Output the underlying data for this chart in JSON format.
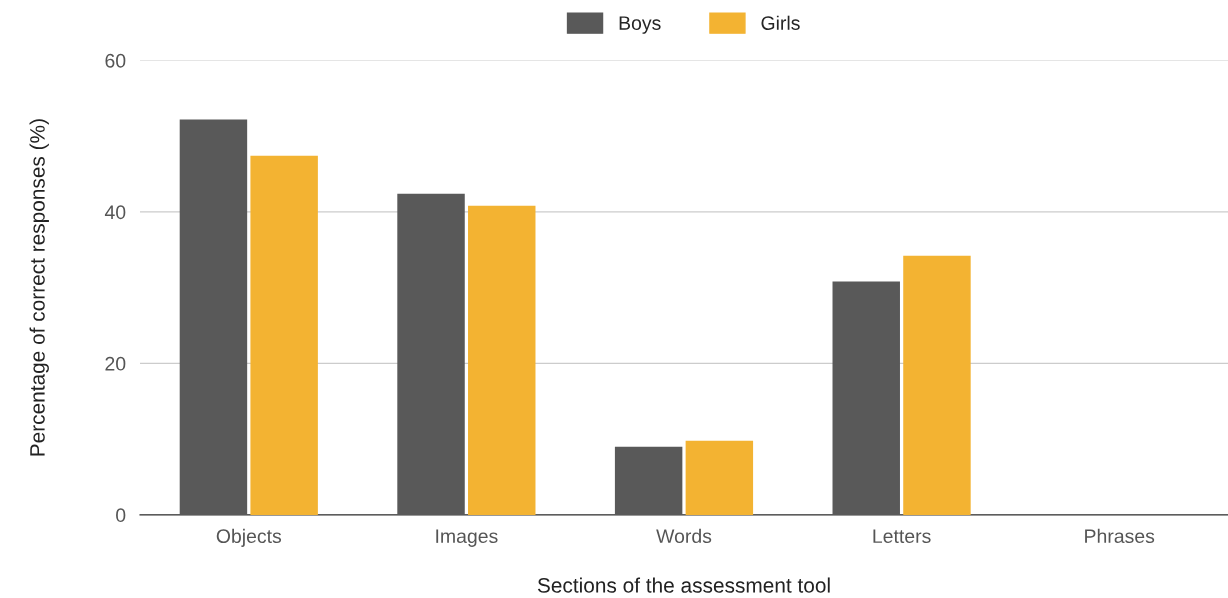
{
  "chart_data": {
    "type": "bar",
    "xlabel": "Sections of the assessment tool",
    "ylabel": "Percentage of correct responses (%)",
    "categories": [
      "Objects",
      "Images",
      "Words",
      "Letters",
      "Phrases"
    ],
    "series": [
      {
        "name": "Boys",
        "color": "#595959",
        "values": [
          52.2,
          42.4,
          9.0,
          30.8,
          null
        ]
      },
      {
        "name": "Girls",
        "color": "#f3b332",
        "values": [
          47.4,
          40.8,
          9.8,
          34.2,
          null
        ]
      }
    ],
    "ylim": [
      0,
      60
    ],
    "yticks": [
      0,
      20,
      40,
      60
    ],
    "grid": "y",
    "legend": "top"
  }
}
